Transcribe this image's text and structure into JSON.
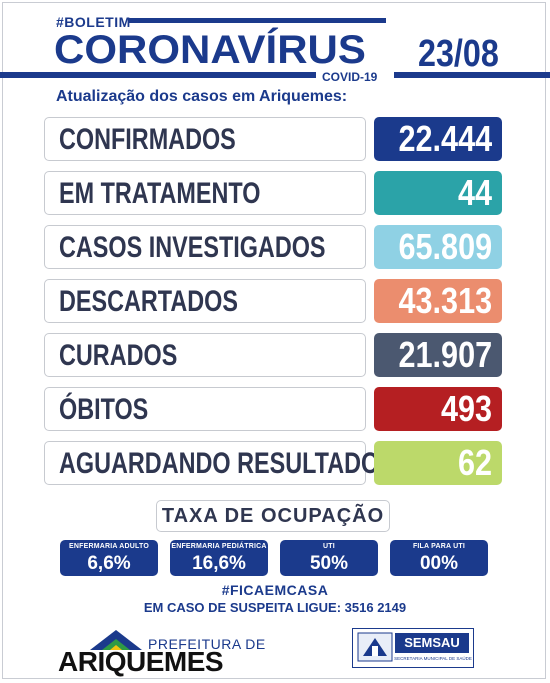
{
  "header": {
    "hashtag": "#BOLETIM",
    "title": "CORONAVÍRUS",
    "subtitle_small": "COVID-19",
    "date": "23/08",
    "update_line": "Atualização dos casos em Ariquemes:",
    "brand_color": "#1b3a8c"
  },
  "stats": [
    {
      "label": "CONFIRMADOS",
      "value": "22.444",
      "color": "#1b3a8c"
    },
    {
      "label": "EM TRATAMENTO",
      "value": "44",
      "color": "#2ba3a8"
    },
    {
      "label": "CASOS INVESTIGADOS",
      "value": "65.809",
      "color": "#8fd1e4"
    },
    {
      "label": "DESCARTADOS",
      "value": "43.313",
      "color": "#eb8d6e"
    },
    {
      "label": "CURADOS",
      "value": "21.907",
      "color": "#4b5870"
    },
    {
      "label": "ÓBITOS",
      "value": "493",
      "color": "#b51f22"
    },
    {
      "label": "AGUARDANDO RESULTADO",
      "value": "62",
      "color": "#bcd96a"
    }
  ],
  "occupancy": {
    "title": "TAXA DE OCUPAÇÃO",
    "items": [
      {
        "label": "ENFERMARIA ADULTO",
        "value": "6,6%"
      },
      {
        "label": "ENFERMARIA PEDIÁTRICA",
        "value": "16,6%"
      },
      {
        "label": "UTI",
        "value": "50%"
      },
      {
        "label": "FILA PARA UTI",
        "value": "00%"
      }
    ]
  },
  "footer": {
    "hashtag": "#FICAEMCASA",
    "phone_line": "EM CASO DE SUSPEITA LIGUE: 3516 2149",
    "logo_left_top": "PREFEITURA DE",
    "logo_left_main": "ARIQUEMES",
    "logo_right_main": "SEMSAU",
    "logo_right_sub": "SECRETARIA MUNICIPAL DE SAÚDE"
  }
}
